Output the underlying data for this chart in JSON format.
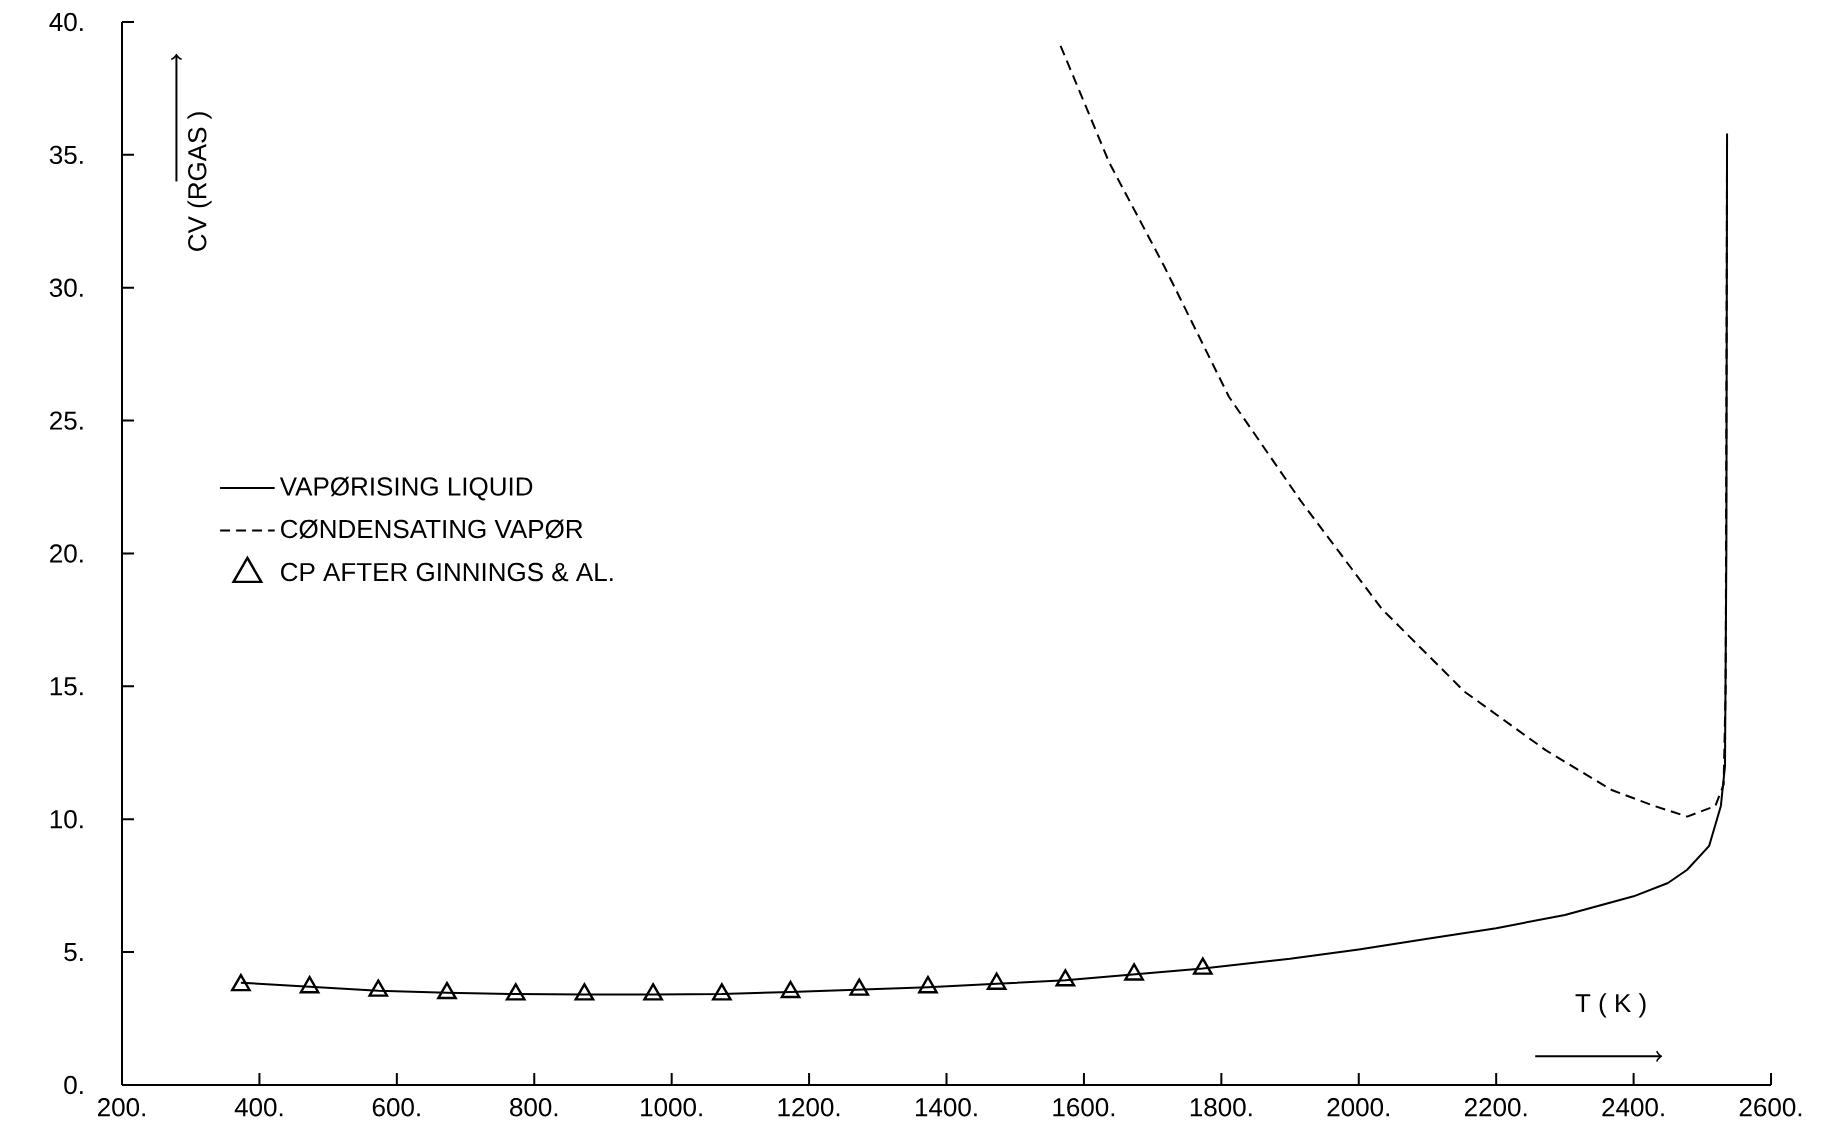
{
  "chart_data": {
    "type": "line",
    "xlabel": "T ( K )",
    "ylabel": "CV (RGAS )",
    "xlim": [
      200,
      2600
    ],
    "ylim": [
      0,
      40
    ],
    "xticks": [
      {
        "value": 200,
        "label": "200."
      },
      {
        "value": 400,
        "label": "400."
      },
      {
        "value": 600,
        "label": "600."
      },
      {
        "value": 800,
        "label": "800."
      },
      {
        "value": 1000,
        "label": "1000."
      },
      {
        "value": 1200,
        "label": "1200."
      },
      {
        "value": 1400,
        "label": "1400."
      },
      {
        "value": 1600,
        "label": "1600."
      },
      {
        "value": 1800,
        "label": "1800."
      },
      {
        "value": 2000,
        "label": "2000."
      },
      {
        "value": 2200,
        "label": "2200."
      },
      {
        "value": 2400,
        "label": "2400."
      },
      {
        "value": 2600,
        "label": "2600."
      }
    ],
    "yticks": [
      {
        "value": 0,
        "label": "0."
      },
      {
        "value": 5,
        "label": "5."
      },
      {
        "value": 10,
        "label": "10."
      },
      {
        "value": 15,
        "label": "15."
      },
      {
        "value": 20,
        "label": "20."
      },
      {
        "value": 25,
        "label": "25."
      },
      {
        "value": 30,
        "label": "30."
      },
      {
        "value": 35,
        "label": "35."
      },
      {
        "value": 40,
        "label": "40."
      }
    ],
    "grid": false,
    "legend": "left",
    "series": [
      {
        "name": "VAPØRISING LIQUID",
        "type": "line",
        "line_style": "solid",
        "color": "#000000",
        "x": [
          373,
          473,
          573,
          673,
          773,
          873,
          973,
          1073,
          1173,
          1273,
          1373,
          1473,
          1573,
          1673,
          1773,
          1900,
          2000,
          2100,
          2200,
          2300,
          2400,
          2450,
          2478,
          2510,
          2527,
          2533,
          2535,
          2536
        ],
        "values": [
          3.85,
          3.7,
          3.55,
          3.47,
          3.42,
          3.41,
          3.41,
          3.42,
          3.5,
          3.59,
          3.68,
          3.81,
          3.94,
          4.16,
          4.38,
          4.75,
          5.1,
          5.5,
          5.9,
          6.4,
          7.1,
          7.6,
          8.1,
          9.0,
          10.5,
          12.0,
          20.0,
          35.8
        ]
      },
      {
        "name": "CØNDENSATING VAPØR",
        "type": "line",
        "line_style": "dashed",
        "color": "#000000",
        "x": [
          1566,
          1637,
          1717,
          1811,
          1915,
          2034,
          2154,
          2272,
          2368,
          2430,
          2478,
          2519,
          2531,
          2534,
          2535,
          2536
        ],
        "values": [
          39.1,
          34.7,
          30.8,
          25.9,
          22.0,
          17.9,
          14.8,
          12.6,
          11.1,
          10.5,
          10.1,
          10.5,
          11.3,
          15.0,
          25.0,
          35.7
        ]
      },
      {
        "name": "CP AFTER GINNINGS & AL.",
        "type": "scatter",
        "marker": "triangle",
        "color": "#000000",
        "x": [
          373,
          473,
          573,
          673,
          773,
          873,
          973,
          1073,
          1173,
          1273,
          1373,
          1473,
          1573,
          1673,
          1773
        ],
        "values": [
          3.76,
          3.68,
          3.55,
          3.46,
          3.41,
          3.41,
          3.41,
          3.41,
          3.5,
          3.59,
          3.68,
          3.81,
          3.94,
          4.16,
          4.38
        ]
      }
    ]
  }
}
